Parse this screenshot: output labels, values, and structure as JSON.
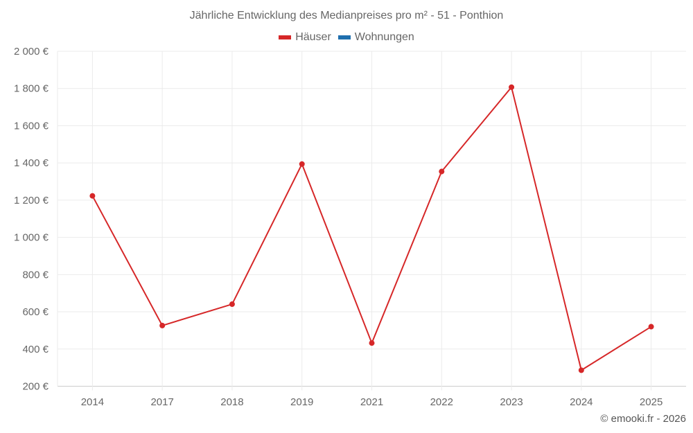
{
  "chart_data": {
    "type": "line",
    "title": "Jährliche Entwicklung des Medianpreises pro m² - 51 - Ponthion",
    "xlabel": "",
    "ylabel": "",
    "categories": [
      "2014",
      "2017",
      "2018",
      "2019",
      "2021",
      "2022",
      "2023",
      "2024",
      "2025"
    ],
    "series": [
      {
        "name": "Häuser",
        "color": "#d62728",
        "values": [
          1223,
          526,
          641,
          1394,
          432,
          1354,
          1807,
          286,
          520
        ]
      },
      {
        "name": "Wohnungen",
        "color": "#1f6fae",
        "values": []
      }
    ],
    "ylim": [
      200,
      2000
    ],
    "yticks": [
      200,
      400,
      600,
      800,
      1000,
      1200,
      1400,
      1600,
      1800,
      2000
    ],
    "ytick_labels": [
      "200 €",
      "400 €",
      "600 €",
      "800 €",
      "1 000 €",
      "1 200 €",
      "1 400 €",
      "1 600 €",
      "1 800 €",
      "2 000 €"
    ],
    "grid": true,
    "legend_position": "top"
  },
  "title": "Jährliche Entwicklung des Medianpreises pro m² - 51 - Ponthion",
  "legend": [
    {
      "label": "Häuser",
      "color": "#d62728"
    },
    {
      "label": "Wohnungen",
      "color": "#1f6fae"
    }
  ],
  "credit": "© emooki.fr - 2026"
}
